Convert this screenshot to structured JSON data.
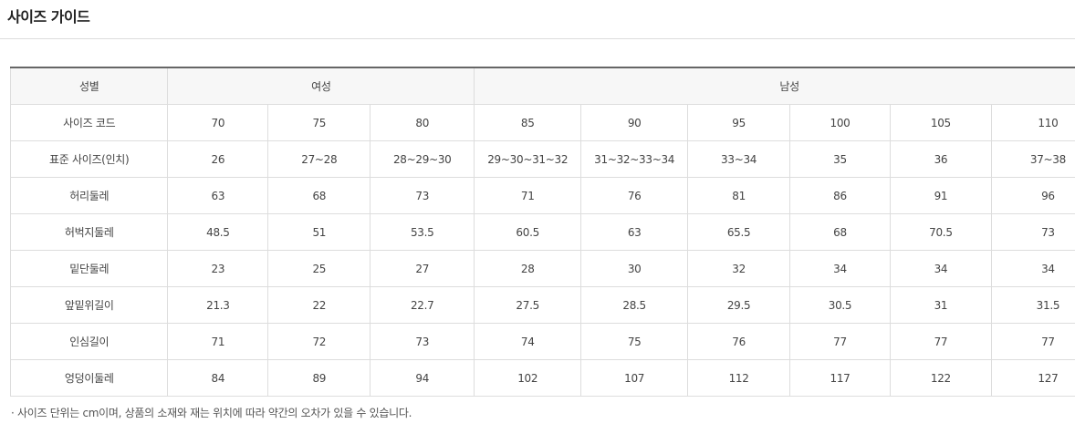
{
  "title": "사이즈 가이드",
  "table": {
    "header": {
      "label": "성별",
      "women": "여성",
      "men": "남성"
    },
    "rows": [
      {
        "label": "사이즈 코드",
        "values": [
          "70",
          "75",
          "80",
          "85",
          "90",
          "95",
          "100",
          "105",
          "110"
        ]
      },
      {
        "label": "표준 사이즈(인치)",
        "values": [
          "26",
          "27~28",
          "28~29~30",
          "29~30~31~32",
          "31~32~33~34",
          "33~34",
          "35",
          "36",
          "37~38"
        ]
      },
      {
        "label": "허리둘레",
        "values": [
          "63",
          "68",
          "73",
          "71",
          "76",
          "81",
          "86",
          "91",
          "96"
        ]
      },
      {
        "label": "허벅지둘레",
        "values": [
          "48.5",
          "51",
          "53.5",
          "60.5",
          "63",
          "65.5",
          "68",
          "70.5",
          "73"
        ]
      },
      {
        "label": "밑단둘레",
        "values": [
          "23",
          "25",
          "27",
          "28",
          "30",
          "32",
          "34",
          "34",
          "34"
        ]
      },
      {
        "label": "앞밑위길이",
        "values": [
          "21.3",
          "22",
          "22.7",
          "27.5",
          "28.5",
          "29.5",
          "30.5",
          "31",
          "31.5"
        ]
      },
      {
        "label": "인심길이",
        "values": [
          "71",
          "72",
          "73",
          "74",
          "75",
          "76",
          "77",
          "77",
          "77"
        ]
      },
      {
        "label": "엉덩이둘레",
        "values": [
          "84",
          "89",
          "94",
          "102",
          "107",
          "112",
          "117",
          "122",
          "127"
        ]
      }
    ]
  },
  "note": "· 사이즈 단위는 cm이며, 상품의 소재와 재는 위치에 따라 약간의 오차가 있을 수 있습니다."
}
